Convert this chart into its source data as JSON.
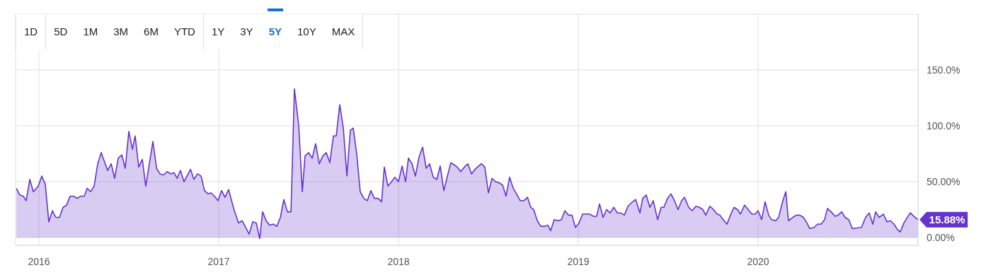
{
  "chart_data": {
    "type": "area",
    "color": "#6633cc",
    "x": [
      2015.874,
      2015.894,
      2015.913,
      2015.929,
      2015.949,
      2015.969,
      2015.996,
      2016.016,
      2016.035,
      2016.055,
      2016.075,
      2016.094,
      2016.114,
      2016.134,
      2016.154,
      2016.173,
      2016.193,
      2016.213,
      2016.232,
      2016.252,
      2016.268,
      2016.287,
      2016.307,
      2016.327,
      2016.346,
      2016.362,
      2016.382,
      2016.402,
      2016.421,
      2016.441,
      2016.461,
      2016.48,
      2016.5,
      2016.52,
      2016.535,
      2016.555,
      2016.575,
      2016.594,
      2016.614,
      2016.634,
      2016.654,
      2016.673,
      2016.693,
      2016.713,
      2016.732,
      2016.752,
      2016.768,
      2016.787,
      2016.807,
      2016.827,
      2016.843,
      2016.862,
      2016.882,
      2016.902,
      2016.921,
      2016.941,
      2016.957,
      2016.976,
      2016.996,
      2017.016,
      2017.035,
      2017.055,
      2017.083,
      2017.11,
      2017.13,
      2017.15,
      2017.169,
      2017.189,
      2017.209,
      2017.228,
      2017.244,
      2017.264,
      2017.283,
      2017.303,
      2017.323,
      2017.343,
      2017.362,
      2017.382,
      2017.402,
      2017.421,
      2017.445,
      2017.465,
      2017.48,
      2017.5,
      2017.52,
      2017.539,
      2017.559,
      2017.579,
      2017.598,
      2017.618,
      2017.638,
      2017.654,
      2017.673,
      2017.693,
      2017.713,
      2017.732,
      2017.748,
      2017.768,
      2017.787,
      2017.807,
      2017.827,
      2017.846,
      2017.866,
      2017.886,
      2017.906,
      2017.921,
      2017.941,
      2017.961,
      2017.98,
      2018.0,
      2018.02,
      2018.039,
      2018.055,
      2018.075,
      2018.094,
      2018.114,
      2018.134,
      2018.154,
      2018.173,
      2018.193,
      2018.213,
      2018.232,
      2018.252,
      2018.272,
      2018.291,
      2018.311,
      2018.327,
      2018.346,
      2018.366,
      2018.386,
      2018.406,
      2018.425,
      2018.445,
      2018.461,
      2018.48,
      2018.5,
      2018.52,
      2018.539,
      2018.559,
      2018.579,
      2018.598,
      2018.618,
      2018.638,
      2018.657,
      2018.677,
      2018.697,
      2018.717,
      2018.736,
      2018.752,
      2018.772,
      2018.791,
      2018.811,
      2018.831,
      2018.846,
      2018.866,
      2018.886,
      2018.906,
      2018.925,
      2018.945,
      2018.965,
      2018.984,
      2019.004,
      2019.024,
      2019.043,
      2019.063,
      2019.083,
      2019.102,
      2019.118,
      2019.138,
      2019.157,
      2019.177,
      2019.197,
      2019.217,
      2019.236,
      2019.256,
      2019.276,
      2019.295,
      2019.319,
      2019.343,
      2019.358,
      2019.378,
      2019.398,
      2019.417,
      2019.441,
      2019.461,
      2019.476,
      2019.496,
      2019.516,
      2019.535,
      2019.555,
      2019.575,
      2019.591,
      2019.614,
      2019.634,
      2019.654,
      2019.673,
      2019.693,
      2019.709,
      2019.732,
      2019.752,
      2019.772,
      2019.787,
      2019.811,
      2019.827,
      2019.846,
      2019.866,
      2019.886,
      2019.902,
      2019.925,
      2019.945,
      2019.965,
      2019.984,
      2020.0,
      2020.02,
      2020.039,
      2020.059,
      2020.075,
      2020.098,
      2020.114,
      2020.138,
      2020.154,
      2020.169,
      2020.193,
      2020.213,
      2020.232,
      2020.252,
      2020.272,
      2020.287,
      2020.311,
      2020.331,
      2020.35,
      2020.37,
      2020.386,
      2020.406,
      2020.429,
      2020.445,
      2020.465,
      2020.484,
      2020.504,
      2020.524,
      2020.575,
      2020.598,
      2020.618,
      2020.638,
      2020.654,
      2020.673,
      2020.697,
      2020.717,
      2020.736,
      2020.756,
      2020.776,
      2020.791,
      2020.811,
      2020.846,
      2020.866,
      2020.89
    ],
    "values": [
      44,
      38,
      37,
      33,
      52,
      41,
      46,
      55,
      48,
      14,
      24,
      18,
      18,
      27,
      29,
      37,
      37,
      35,
      37,
      37,
      44,
      41,
      46,
      66,
      76,
      69,
      60,
      66,
      53,
      71,
      74,
      62,
      95,
      79,
      91,
      63,
      70,
      46,
      66,
      86,
      62,
      57,
      56,
      59,
      57,
      58,
      53,
      60,
      50,
      56,
      61,
      52,
      57,
      55,
      42,
      39,
      40,
      37,
      33,
      42,
      36,
      43,
      26,
      13,
      15,
      9,
      3,
      14,
      13,
      -1,
      23,
      15,
      11,
      12,
      10,
      18,
      34,
      23,
      23,
      133,
      100,
      41,
      73,
      76,
      71,
      84,
      66,
      73,
      76,
      67,
      91,
      91,
      119,
      98,
      55,
      96,
      98,
      74,
      41,
      35,
      33,
      42,
      35,
      35,
      32,
      63,
      46,
      50,
      54,
      50,
      64,
      50,
      71,
      66,
      55,
      72,
      81,
      62,
      66,
      54,
      52,
      64,
      42,
      55,
      67,
      65,
      63,
      59,
      63,
      66,
      57,
      61,
      64,
      66,
      63,
      40,
      53,
      50,
      49,
      47,
      37,
      54,
      44,
      39,
      33,
      33,
      36,
      27,
      25,
      15,
      10,
      10,
      11,
      6,
      16,
      15,
      16,
      24,
      20,
      20,
      9,
      13,
      21,
      21,
      21,
      19,
      19,
      30,
      18,
      25,
      22,
      27,
      22,
      22,
      20,
      28,
      31,
      34,
      22,
      35,
      38,
      27,
      33,
      16,
      27,
      27,
      35,
      39,
      33,
      25,
      33,
      36,
      27,
      24,
      28,
      27,
      25,
      20,
      28,
      25,
      21,
      20,
      15,
      12,
      20,
      27,
      25,
      21,
      29,
      25,
      21,
      21,
      24,
      16,
      32,
      20,
      16,
      15,
      18,
      33,
      41,
      15,
      18,
      20,
      20,
      18,
      13,
      8,
      9,
      12,
      12,
      16,
      26,
      23,
      19,
      20,
      23,
      18,
      16,
      8,
      9,
      18,
      22,
      12,
      23,
      18,
      21,
      14,
      15,
      12,
      7,
      5,
      13,
      22,
      19,
      15.88
    ],
    "xlim": [
      2015.87,
      2020.89
    ],
    "xticks": [
      2016,
      2017,
      2018,
      2019,
      2020
    ],
    "ylim": [
      -7,
      200
    ],
    "yticks": [
      {
        "value": 0,
        "label": "0.00%"
      },
      {
        "value": 50,
        "label": "50.00%"
      },
      {
        "value": 100,
        "label": "100.0%"
      },
      {
        "value": 150,
        "label": "150.0%"
      }
    ],
    "grid": true,
    "marker": "none",
    "line_style": "solid",
    "annotations": [
      "1D",
      "5D",
      "1M",
      "3M",
      "6M",
      "YTD",
      "1Y",
      "3Y",
      "5Y",
      "10Y",
      "MAX",
      {
        "text": "15.88%",
        "x": 2020.89,
        "y": 15.88
      }
    ]
  }
}
